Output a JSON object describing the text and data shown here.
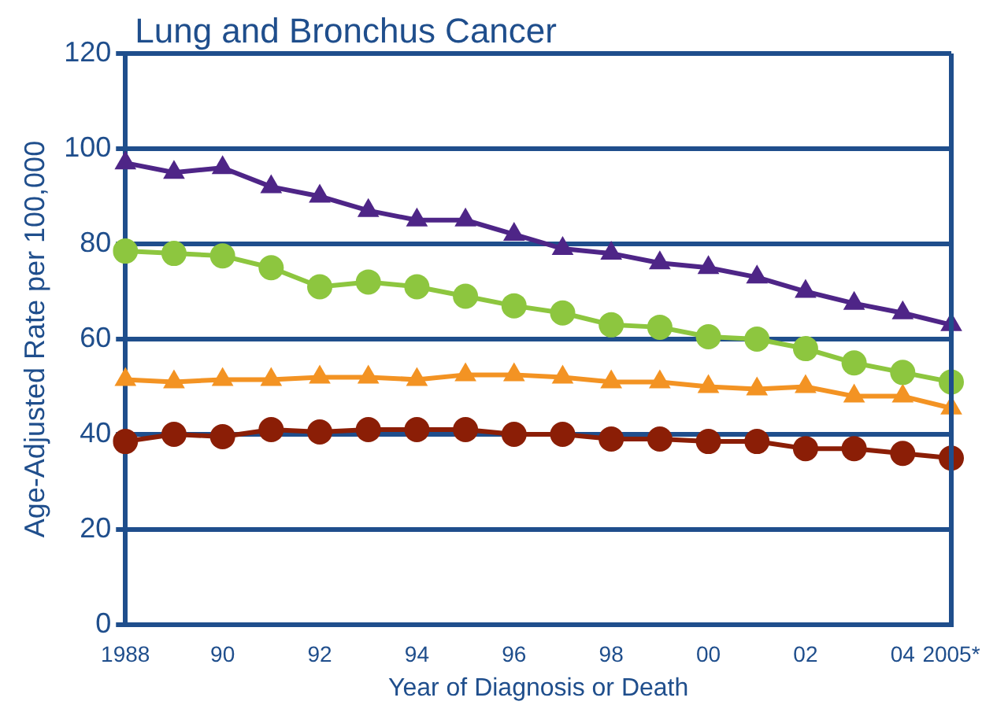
{
  "chart_data": {
    "type": "line",
    "title": "Lung and Bronchus Cancer",
    "xlabel": "Year of Diagnosis or Death",
    "ylabel": "Age-Adjusted Rate per 100,000",
    "categories": [
      "1988",
      null,
      "90",
      null,
      "92",
      null,
      "94",
      null,
      "96",
      null,
      "98",
      null,
      "00",
      null,
      "02",
      null,
      "04",
      "2005*"
    ],
    "series": [
      {
        "color": "#4e2587",
        "marker": "triangle",
        "values": [
          97,
          95,
          96,
          92,
          90,
          87,
          85,
          85,
          82,
          79,
          78,
          76,
          75,
          73,
          70,
          67.5,
          65.5,
          63
        ]
      },
      {
        "color": "#8dc63f",
        "marker": "circle",
        "values": [
          78.5,
          78,
          77.5,
          75,
          71,
          72,
          71,
          69,
          67,
          65.5,
          63,
          62.5,
          60.5,
          60,
          58,
          55,
          53,
          51
        ]
      },
      {
        "color": "#f39323",
        "marker": "triangle",
        "values": [
          51.5,
          51,
          51.5,
          51.5,
          52,
          52,
          51.5,
          52.5,
          52.5,
          52,
          51,
          51,
          50,
          49.5,
          50,
          48,
          48,
          45.5
        ]
      },
      {
        "color": "#8b1e06",
        "marker": "circle",
        "values": [
          38.5,
          40,
          39.5,
          41,
          40.5,
          41,
          41,
          41,
          40,
          40,
          39,
          39,
          38.5,
          38.5,
          37,
          37,
          36,
          35
        ]
      }
    ],
    "ylim": [
      0,
      120
    ],
    "yticks": [
      0,
      20,
      40,
      60,
      80,
      100,
      120
    ],
    "grid": "y",
    "legend": false
  }
}
